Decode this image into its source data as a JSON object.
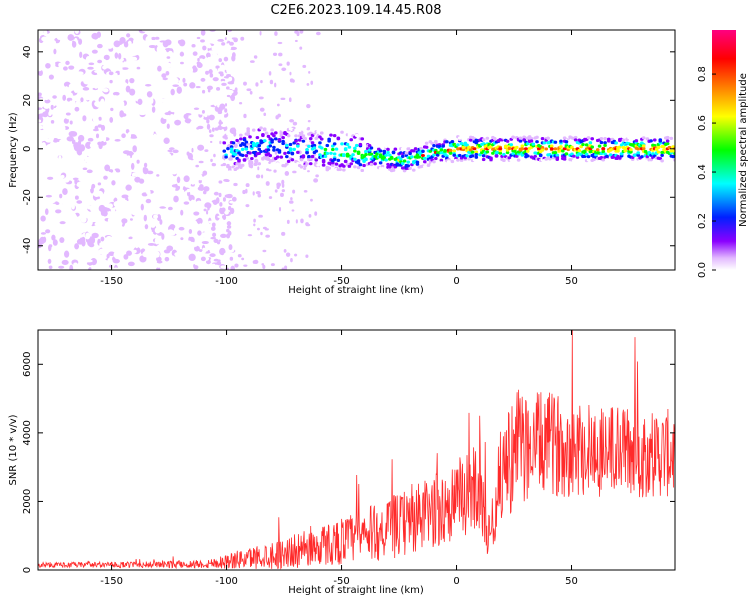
{
  "title": "C2E6.2023.109.14.45.R08",
  "chart_data": [
    {
      "type": "heatmap",
      "xlabel": "Height of straight line (km)",
      "ylabel": "Frequency (Hz)",
      "xlim": [
        -182,
        95
      ],
      "ylim": [
        -50,
        49
      ],
      "xticks": [
        -150,
        -100,
        -50,
        0,
        50
      ],
      "yticks": [
        -40,
        -20,
        0,
        20,
        40
      ],
      "colorbar": {
        "label": "Normalized spectral amplitude",
        "range": [
          0,
          0.98
        ],
        "ticks": [
          "0.0",
          "0.2",
          "0.4",
          "0.6",
          "0.8"
        ],
        "tick_values": [
          0.0,
          0.2,
          0.4,
          0.6,
          0.8
        ],
        "colormap": [
          "#ffffff",
          "#e2b8ff",
          "#8a00ff",
          "#0020ff",
          "#00ffff",
          "#00ff00",
          "#ffff00",
          "#ff8000",
          "#ff0000",
          "#ff0080"
        ]
      },
      "ridge": {
        "description_points": [
          {
            "x": -100,
            "y": -2
          },
          {
            "x": -85,
            "y": 2
          },
          {
            "x": -70,
            "y": 0
          },
          {
            "x": -50,
            "y": -1
          },
          {
            "x": -35,
            "y": -3
          },
          {
            "x": -22,
            "y": -5
          },
          {
            "x": -12,
            "y": -2
          },
          {
            "x": 0,
            "y": 0
          },
          {
            "x": 20,
            "y": 0
          },
          {
            "x": 50,
            "y": 0
          },
          {
            "x": 93,
            "y": 0
          }
        ],
        "noise_region_x": [
          -182,
          -100
        ]
      }
    },
    {
      "type": "line",
      "xlabel": "Height of straight line (km)",
      "ylabel": "SNR (10 * v/v)",
      "xlim": [
        -182,
        95
      ],
      "ylim": [
        0,
        7000
      ],
      "xticks": [
        -150,
        -100,
        -50,
        0,
        50
      ],
      "yticks": [
        0,
        2000,
        4000,
        6000
      ],
      "color": "#ff2a2a",
      "series": [
        {
          "x": [
            -180,
            -150,
            -110,
            -100,
            -90,
            -80,
            -70,
            -60,
            -50,
            -40,
            -30,
            -20,
            -10,
            0,
            10,
            14,
            20,
            26,
            30,
            40,
            50,
            60,
            70,
            80,
            93
          ],
          "y": [
            150,
            150,
            170,
            250,
            350,
            450,
            550,
            700,
            850,
            1000,
            1200,
            1400,
            1700,
            2000,
            2500,
            900,
            3000,
            3500,
            3600,
            3700,
            3600,
            3500,
            3500,
            3400,
            3400
          ],
          "spread": [
            80,
            80,
            120,
            220,
            320,
            420,
            500,
            600,
            700,
            800,
            900,
            1000,
            1100,
            1200,
            1300,
            700,
            1500,
            1800,
            1600,
            1500,
            1500,
            1400,
            1400,
            1300,
            1300
          ]
        }
      ]
    }
  ]
}
